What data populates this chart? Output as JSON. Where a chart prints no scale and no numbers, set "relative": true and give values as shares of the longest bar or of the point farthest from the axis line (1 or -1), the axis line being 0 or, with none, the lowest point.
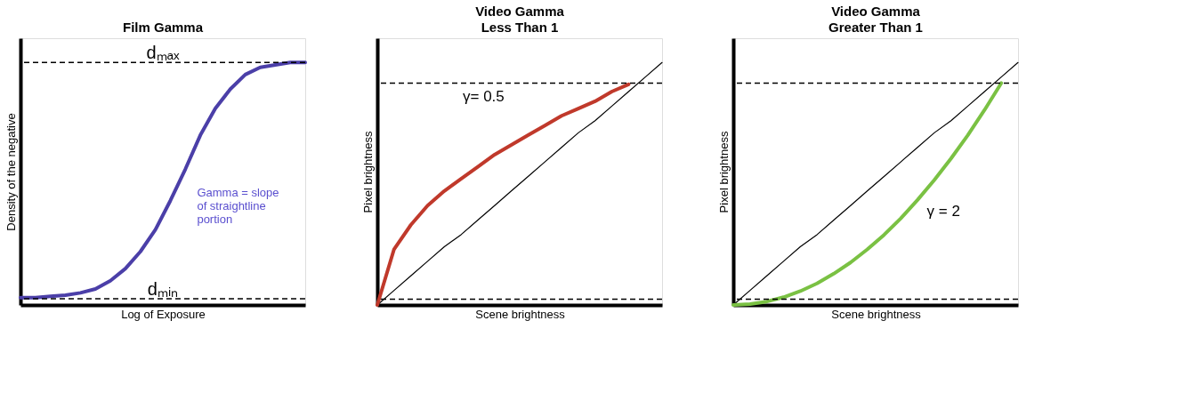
{
  "chart_data": [
    {
      "type": "line",
      "title": "Film Gamma",
      "xlabel": "Log of Exposure",
      "ylabel": "Density of the negative",
      "relative": true,
      "tick_labels": false,
      "grid": false,
      "marker": "none",
      "line_style": "solid",
      "categories": [
        null,
        null,
        null,
        null,
        null,
        null,
        null,
        null,
        null,
        null,
        null,
        null,
        null,
        null,
        null,
        null,
        null,
        null,
        null,
        null
      ],
      "series": [
        {
          "color": "#4b3fa8",
          "values": [
            0.03,
            0.03,
            0.036,
            0.04,
            0.05,
            0.066,
            0.1,
            0.15,
            0.22,
            0.31,
            0.43,
            0.56,
            0.7,
            0.81,
            0.89,
            0.95,
            0.98,
            0.99,
            1,
            1
          ]
        }
      ],
      "ref_lines": [
        {
          "axis": "y",
          "value": 1,
          "label": "dₘₐₓ",
          "line_style": "dashed",
          "color": "#000000"
        },
        {
          "axis": "y",
          "value": 0.026,
          "label": "dₘᵢₙ",
          "line_style": "dashed",
          "color": "#000000"
        }
      ],
      "annotations": [
        "Gamma = slope\nof straightline\nportion"
      ]
    },
    {
      "type": "line",
      "title": "Video Gamma",
      "subtitle": "Less Than 1",
      "xlabel": "Scene brightness",
      "ylabel": "Pixel brightness",
      "relative": true,
      "tick_labels": false,
      "grid": false,
      "marker": "none",
      "line_style": "solid",
      "categories": [
        null,
        null,
        null,
        null,
        null,
        null,
        null,
        null,
        null,
        null,
        null,
        null,
        null,
        null,
        null,
        null,
        null,
        null
      ],
      "series": [
        {
          "color": "#000000",
          "values": [
            0,
            0.06,
            0.12,
            0.18,
            0.24,
            0.29,
            0.35,
            0.41,
            0.47,
            0.53,
            0.59,
            0.65,
            0.71,
            0.76,
            0.82,
            0.88,
            0.94,
            1
          ]
        },
        {
          "color": "#c0392b",
          "values": [
            0,
            0.23,
            0.33,
            0.41,
            0.47,
            0.52,
            0.57,
            0.62,
            0.66,
            0.7,
            0.74,
            0.78,
            0.81,
            0.84,
            0.88,
            0.91,
            null,
            null
          ]
        }
      ],
      "ref_lines": [
        {
          "axis": "y",
          "value": 0.915,
          "line_style": "dashed",
          "color": "#000000"
        },
        {
          "axis": "y",
          "value": 0.024,
          "line_style": "dashed",
          "color": "#000000"
        }
      ],
      "annotations": [
        "γ= 0.5"
      ]
    },
    {
      "type": "line",
      "title": "Video Gamma",
      "subtitle": "Greater Than 1",
      "xlabel": "Scene brightness",
      "ylabel": "Pixel brightness",
      "relative": true,
      "tick_labels": false,
      "grid": false,
      "marker": "none",
      "line_style": "solid",
      "categories": [
        null,
        null,
        null,
        null,
        null,
        null,
        null,
        null,
        null,
        null,
        null,
        null,
        null,
        null,
        null,
        null,
        null,
        null
      ],
      "series": [
        {
          "color": "#000000",
          "values": [
            0,
            0.06,
            0.12,
            0.18,
            0.24,
            0.29,
            0.35,
            0.41,
            0.47,
            0.53,
            0.59,
            0.65,
            0.71,
            0.76,
            0.82,
            0.88,
            0.94,
            1
          ]
        },
        {
          "color": "#7ac143",
          "values": [
            0,
            0.004,
            0.014,
            0.032,
            0.057,
            0.089,
            0.129,
            0.175,
            0.229,
            0.289,
            0.357,
            0.433,
            0.515,
            0.604,
            0.7,
            0.804,
            0.915,
            null
          ]
        }
      ],
      "ref_lines": [
        {
          "axis": "y",
          "value": 0.915,
          "line_style": "dashed",
          "color": "#000000"
        },
        {
          "axis": "y",
          "value": 0.024,
          "line_style": "dashed",
          "color": "#000000"
        }
      ],
      "annotations": [
        "γ = 2"
      ]
    }
  ]
}
